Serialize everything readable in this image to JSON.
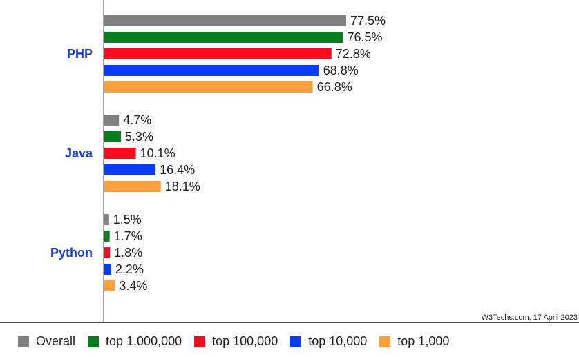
{
  "chart_data": {
    "type": "bar",
    "orientation": "horizontal",
    "categories": [
      "PHP",
      "Java",
      "Python"
    ],
    "series": [
      {
        "name": "Overall",
        "color": "#808080",
        "values": [
          77.5,
          4.7,
          1.5
        ],
        "labels": [
          "77.5%",
          "4.7%",
          "1.5%"
        ]
      },
      {
        "name": "top 1,000,000",
        "color": "#0a7d1e",
        "values": [
          76.5,
          5.3,
          1.7
        ],
        "labels": [
          "76.5%",
          "5.3%",
          "1.7%"
        ]
      },
      {
        "name": "top 100,000",
        "color": "#ff0a1e",
        "values": [
          72.8,
          10.1,
          1.8
        ],
        "labels": [
          "72.8%",
          "10.1%",
          "1.8%"
        ]
      },
      {
        "name": "top 10,000",
        "color": "#0a3cff",
        "values": [
          68.8,
          16.4,
          2.2
        ],
        "labels": [
          "68.8%",
          "16.4%",
          "2.2%"
        ]
      },
      {
        "name": "top 1,000",
        "color": "#ffa03c",
        "values": [
          66.8,
          18.1,
          3.4
        ],
        "labels": [
          "66.8%",
          "18.1%",
          "3.4%"
        ]
      }
    ],
    "xlim": [
      0,
      100
    ],
    "grid": false,
    "legend_position": "bottom",
    "credit": "W3Techs.com, 17 April 2023"
  }
}
